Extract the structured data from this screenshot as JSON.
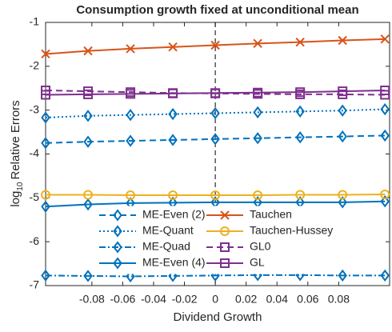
{
  "chart_data": {
    "type": "line",
    "title": "Consumption growth fixed at unconditional mean",
    "xlabel": "Dividend Growth",
    "ylabel": [
      "log",
      "10",
      "Relative Errors"
    ],
    "x": [
      -0.11,
      -0.0825,
      -0.055,
      -0.0275,
      0,
      0.0275,
      0.055,
      0.0825,
      0.11
    ],
    "xlim": [
      -0.11,
      0.113
    ],
    "xticks": [
      -0.08,
      -0.06,
      -0.04,
      -0.02,
      0,
      0.02,
      0.04,
      0.06,
      0.08
    ],
    "ylim": [
      -7,
      -1
    ],
    "yticks": [
      -7,
      -6,
      -5,
      -4,
      -3,
      -2,
      -1
    ],
    "series": [
      {
        "name": "ME-Even (2)",
        "color": "#0072bd",
        "dash": "dashed",
        "marker": "diamond",
        "values": [
          -3.75,
          -3.72,
          -3.7,
          -3.68,
          -3.66,
          -3.64,
          -3.62,
          -3.6,
          -3.58
        ]
      },
      {
        "name": "ME-Quant",
        "color": "#0072bd",
        "dash": "dotted",
        "marker": "diamond",
        "values": [
          -3.17,
          -3.13,
          -3.11,
          -3.09,
          -3.07,
          -3.05,
          -3.03,
          -3.01,
          -2.98
        ]
      },
      {
        "name": "ME-Quad",
        "color": "#0072bd",
        "dash": "dashdot",
        "marker": "diamond",
        "values": [
          -6.77,
          -6.78,
          -6.79,
          -6.78,
          -6.77,
          -6.76,
          -6.76,
          -6.77,
          -6.77
        ]
      },
      {
        "name": "ME-Even (4)",
        "color": "#0072bd",
        "dash": "solid",
        "marker": "diamond",
        "values": [
          -5.2,
          -5.15,
          -5.12,
          -5.11,
          -5.1,
          -5.1,
          -5.1,
          -5.1,
          -5.08
        ]
      },
      {
        "name": "Tauchen",
        "color": "#d95319",
        "dash": "solid",
        "marker": "x",
        "values": [
          -1.72,
          -1.65,
          -1.6,
          -1.56,
          -1.52,
          -1.48,
          -1.45,
          -1.41,
          -1.38
        ]
      },
      {
        "name": "Tauchen-Hussey",
        "color": "#edb120",
        "dash": "solid",
        "marker": "circle",
        "values": [
          -4.93,
          -4.93,
          -4.94,
          -4.94,
          -4.94,
          -4.94,
          -4.93,
          -4.93,
          -4.92
        ]
      },
      {
        "name": "GL0",
        "color": "#7e2f8e",
        "dash": "dashed",
        "marker": "square",
        "values": [
          -2.55,
          -2.57,
          -2.59,
          -2.61,
          -2.62,
          -2.63,
          -2.64,
          -2.64,
          -2.65
        ]
      },
      {
        "name": "GL",
        "color": "#7e2f8e",
        "dash": "solid",
        "marker": "square",
        "values": [
          -2.65,
          -2.64,
          -2.63,
          -2.62,
          -2.61,
          -2.6,
          -2.59,
          -2.57,
          -2.55
        ]
      }
    ]
  }
}
